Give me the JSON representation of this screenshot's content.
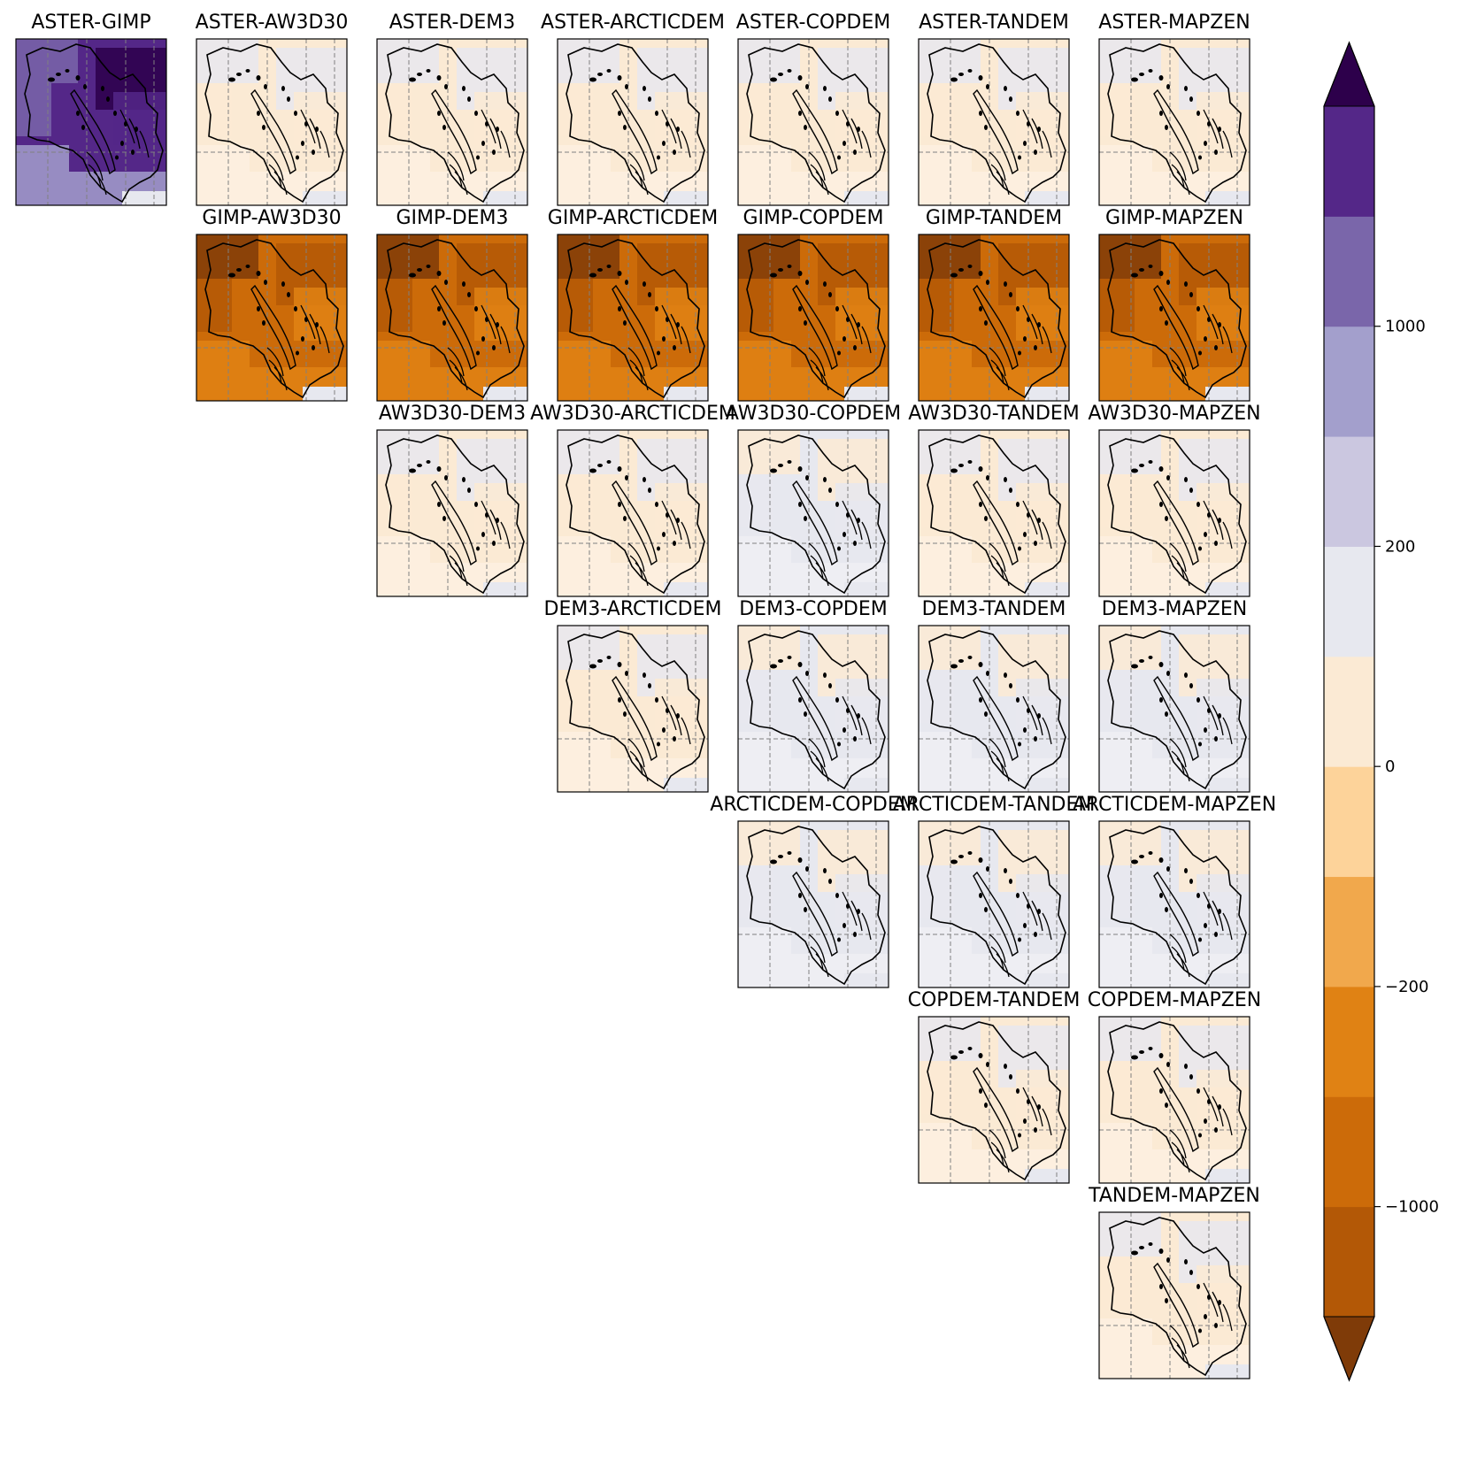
{
  "chart_data": {
    "type": "heatmap",
    "title": "",
    "description_layout": "upper-triangular grid of pairwise DEM difference maps",
    "datasets": [
      "ASTER",
      "GIMP",
      "AW3D30",
      "DEM3",
      "ARCTICDEM",
      "COPDEM",
      "TANDEM",
      "MAPZEN"
    ],
    "panels": [
      {
        "row": 0,
        "col": 0,
        "title": "ASTER-GIMP",
        "tone": "purple"
      },
      {
        "row": 0,
        "col": 1,
        "title": "ASTER-AW3D30",
        "tone": "near-zero-neg"
      },
      {
        "row": 0,
        "col": 2,
        "title": "ASTER-DEM3",
        "tone": "near-zero-neg"
      },
      {
        "row": 0,
        "col": 3,
        "title": "ASTER-ARCTICDEM",
        "tone": "near-zero-neg"
      },
      {
        "row": 0,
        "col": 4,
        "title": "ASTER-COPDEM",
        "tone": "near-zero-neg"
      },
      {
        "row": 0,
        "col": 5,
        "title": "ASTER-TANDEM",
        "tone": "near-zero-neg"
      },
      {
        "row": 0,
        "col": 6,
        "title": "ASTER-MAPZEN",
        "tone": "near-zero-neg"
      },
      {
        "row": 1,
        "col": 1,
        "title": "GIMP-AW3D30",
        "tone": "orange"
      },
      {
        "row": 1,
        "col": 2,
        "title": "GIMP-DEM3",
        "tone": "orange"
      },
      {
        "row": 1,
        "col": 3,
        "title": "GIMP-ARCTICDEM",
        "tone": "orange"
      },
      {
        "row": 1,
        "col": 4,
        "title": "GIMP-COPDEM",
        "tone": "orange"
      },
      {
        "row": 1,
        "col": 5,
        "title": "GIMP-TANDEM",
        "tone": "orange"
      },
      {
        "row": 1,
        "col": 6,
        "title": "GIMP-MAPZEN",
        "tone": "orange"
      },
      {
        "row": 2,
        "col": 2,
        "title": "AW3D30-DEM3",
        "tone": "near-zero-neg"
      },
      {
        "row": 2,
        "col": 3,
        "title": "AW3D30-ARCTICDEM",
        "tone": "near-zero-neg"
      },
      {
        "row": 2,
        "col": 4,
        "title": "AW3D30-COPDEM",
        "tone": "near-zero-pos"
      },
      {
        "row": 2,
        "col": 5,
        "title": "AW3D30-TANDEM",
        "tone": "near-zero-neg"
      },
      {
        "row": 2,
        "col": 6,
        "title": "AW3D30-MAPZEN",
        "tone": "near-zero-neg"
      },
      {
        "row": 3,
        "col": 3,
        "title": "DEM3-ARCTICDEM",
        "tone": "near-zero-neg"
      },
      {
        "row": 3,
        "col": 4,
        "title": "DEM3-COPDEM",
        "tone": "near-zero-pos"
      },
      {
        "row": 3,
        "col": 5,
        "title": "DEM3-TANDEM",
        "tone": "near-zero-pos"
      },
      {
        "row": 3,
        "col": 6,
        "title": "DEM3-MAPZEN",
        "tone": "near-zero-pos"
      },
      {
        "row": 4,
        "col": 4,
        "title": "ARCTICDEM-COPDEM",
        "tone": "near-zero-pos"
      },
      {
        "row": 4,
        "col": 5,
        "title": "ARCTICDEM-TANDEM",
        "tone": "near-zero-pos"
      },
      {
        "row": 4,
        "col": 6,
        "title": "ARCTICDEM-MAPZEN",
        "tone": "near-zero-pos"
      },
      {
        "row": 5,
        "col": 5,
        "title": "COPDEM-TANDEM",
        "tone": "near-zero-neg"
      },
      {
        "row": 5,
        "col": 6,
        "title": "COPDEM-MAPZEN",
        "tone": "near-zero-neg"
      },
      {
        "row": 6,
        "col": 6,
        "title": "TANDEM-MAPZEN",
        "tone": "near-zero-neg"
      }
    ],
    "colorbar": {
      "orientation": "vertical",
      "extend": "both",
      "boundaries": [
        -2000,
        -1000,
        -500,
        -200,
        -100,
        0,
        100,
        200,
        500,
        1000,
        2000
      ],
      "ticks": [
        {
          "value": 1000,
          "label": "1000"
        },
        {
          "value": 200,
          "label": "200"
        },
        {
          "value": 0,
          "label": "0"
        },
        {
          "value": -200,
          "label": "−200"
        },
        {
          "value": -1000,
          "label": "−1000"
        }
      ],
      "colors_low_to_high": [
        "#b35806",
        "#cc6b09",
        "#e08214",
        "#f1a84c",
        "#fdd39a",
        "#fbead4",
        "#e7e8ef",
        "#cbc7e0",
        "#a39fcc",
        "#7a66aa",
        "#542788"
      ],
      "under_color": "#7f3b08",
      "over_color": "#2d004b"
    }
  }
}
